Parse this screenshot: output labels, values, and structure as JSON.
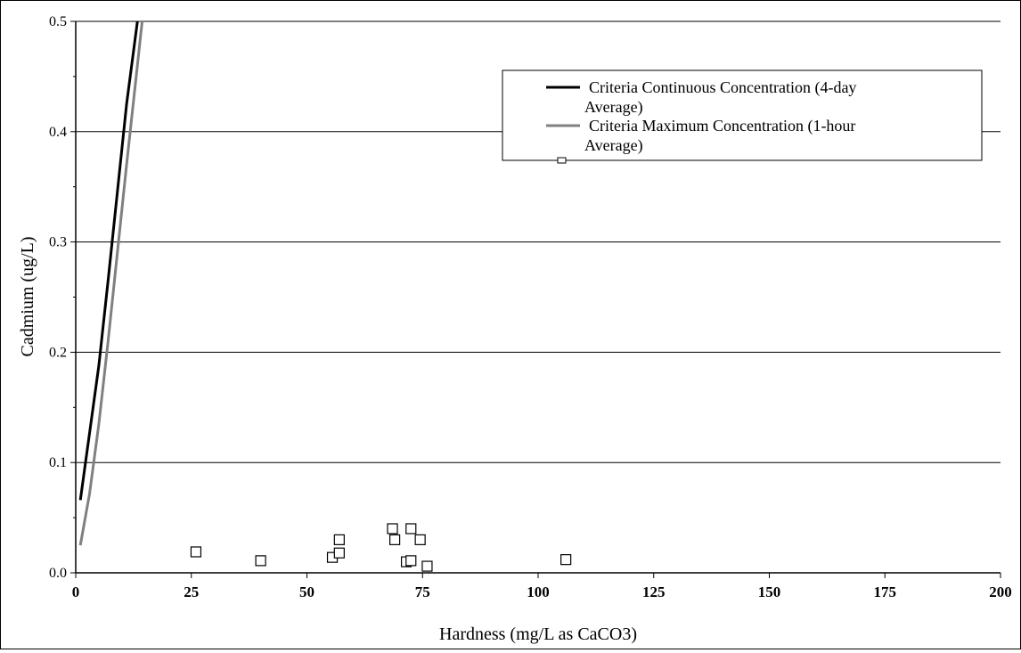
{
  "chart_data": {
    "type": "scatter",
    "title": "",
    "xlabel": "Hardness (mg/L as CaCO3)",
    "ylabel": "Cadmium (ug/L)",
    "xlim": [
      0,
      200
    ],
    "ylim": [
      0,
      0.5
    ],
    "x_ticks": [
      0,
      25,
      50,
      75,
      100,
      125,
      150,
      175,
      200
    ],
    "y_ticks": [
      0.0,
      0.1,
      0.2,
      0.3,
      0.4,
      0.5
    ],
    "x_tick_labels": [
      "0",
      "25",
      "50",
      "75",
      "100",
      "125",
      "150",
      "175",
      "200"
    ],
    "y_tick_labels": [
      "0.0",
      "0.1",
      "0.2",
      "0.3",
      "0.4",
      "0.5"
    ],
    "grid": "horizontal",
    "legend_position": "top-right",
    "series": [
      {
        "name": "Criteria Continuous Concentration (4-day Average)",
        "kind": "line",
        "color": "#000000",
        "x": [
          1,
          3,
          5,
          7,
          9,
          11,
          13.5
        ],
        "y": [
          0.066,
          0.127,
          0.188,
          0.265,
          0.345,
          0.425,
          0.505
        ]
      },
      {
        "name": "Criteria Maximum Concentration (1-hour Average)",
        "kind": "line",
        "color": "#808080",
        "x": [
          1,
          3,
          5,
          7,
          9,
          11,
          14.5
        ],
        "y": [
          0.025,
          0.072,
          0.135,
          0.21,
          0.29,
          0.37,
          0.505
        ]
      },
      {
        "name": "Cadmium (ug/L)",
        "kind": "scatter",
        "marker": "open-square",
        "color": "#000000",
        "x": [
          26,
          40,
          55.5,
          57,
          57,
          68.5,
          69,
          71.5,
          72.5,
          72.5,
          74.5,
          76,
          106
        ],
        "y": [
          0.019,
          0.011,
          0.014,
          0.018,
          0.03,
          0.04,
          0.03,
          0.01,
          0.011,
          0.04,
          0.03,
          0.006,
          0.012
        ]
      }
    ]
  }
}
